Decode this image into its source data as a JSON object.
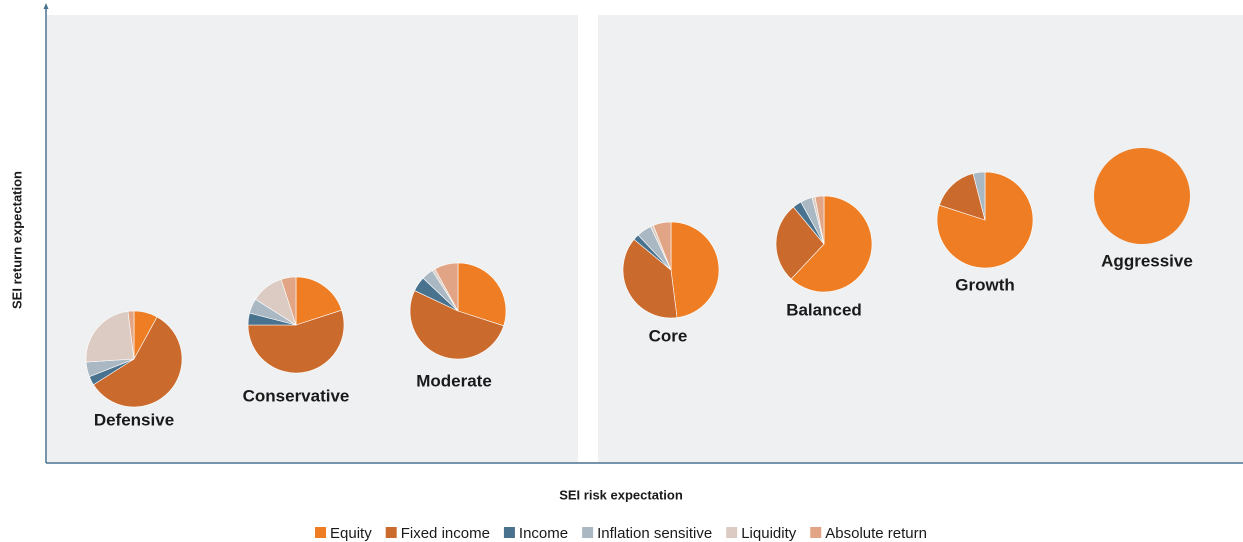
{
  "chart_data": {
    "type": "pie",
    "x_label": "SEI risk expectation",
    "y_label": "SEI return expectation",
    "categories": [
      "Equity",
      "Fixed income",
      "Income",
      "Inflation sensitive",
      "Liquidity",
      "Absolute return"
    ],
    "colors": [
      "#ee7d23",
      "#cb6a2d",
      "#48728d",
      "#a9b8c2",
      "#dccbc2",
      "#e1a585"
    ],
    "pies": [
      {
        "name": "Defensive",
        "values": [
          8,
          58,
          3,
          5,
          24,
          2
        ]
      },
      {
        "name": "Conservative",
        "values": [
          20,
          55,
          4,
          5,
          11,
          5
        ]
      },
      {
        "name": "Moderate",
        "values": [
          30,
          52,
          5,
          4,
          1,
          8
        ]
      },
      {
        "name": "Core",
        "values": [
          48,
          38,
          2,
          5,
          1,
          6
        ]
      },
      {
        "name": "Balanced",
        "values": [
          62,
          27,
          3,
          4,
          1,
          3
        ]
      },
      {
        "name": "Growth",
        "values": [
          80,
          16,
          0,
          4,
          0,
          0
        ]
      },
      {
        "name": "Aggressive",
        "values": [
          100,
          0,
          0,
          0,
          0,
          0
        ]
      }
    ]
  }
}
